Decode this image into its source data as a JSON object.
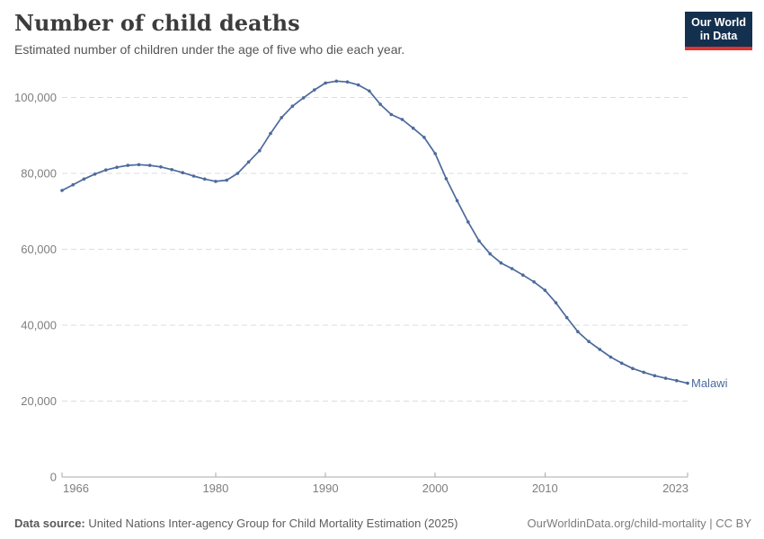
{
  "header": {
    "title": "Number of child deaths",
    "subtitle": "Estimated number of children under the age of five who die each year."
  },
  "logo": {
    "line1": "Our World",
    "line2": "in Data",
    "bg_color": "#13304F",
    "accent_color": "#E2342D"
  },
  "chart_data": {
    "type": "line",
    "title": "Number of child deaths",
    "subtitle": "Estimated number of children under the age of five who die each year.",
    "xlabel": "",
    "ylabel": "",
    "xlim": [
      1966,
      2023
    ],
    "ylim": [
      0,
      106000
    ],
    "grid": true,
    "grid_style": "dashed",
    "grid_color": "#dddddd",
    "axis_color": "#aaaaaa",
    "x_ticks": [
      1966,
      1980,
      1990,
      2000,
      2010,
      2023
    ],
    "y_ticks": [
      0,
      20000,
      40000,
      60000,
      80000,
      100000
    ],
    "y_tick_labels": [
      "0",
      "20,000",
      "40,000",
      "60,000",
      "80,000",
      "100,000"
    ],
    "legend_position": "end-of-line-label",
    "series": [
      {
        "name": "Malawi",
        "color": "#4C6A9C",
        "x": [
          1966,
          1967,
          1968,
          1969,
          1970,
          1971,
          1972,
          1973,
          1974,
          1975,
          1976,
          1977,
          1978,
          1979,
          1980,
          1981,
          1982,
          1983,
          1984,
          1985,
          1986,
          1987,
          1988,
          1989,
          1990,
          1991,
          1992,
          1993,
          1994,
          1995,
          1996,
          1997,
          1998,
          1999,
          2000,
          2001,
          2002,
          2003,
          2004,
          2005,
          2006,
          2007,
          2008,
          2009,
          2010,
          2011,
          2012,
          2013,
          2014,
          2015,
          2016,
          2017,
          2018,
          2019,
          2020,
          2021,
          2022,
          2023
        ],
        "values": [
          75500,
          77000,
          78500,
          79800,
          80900,
          81600,
          82100,
          82300,
          82100,
          81700,
          81000,
          80200,
          79300,
          78500,
          77900,
          78200,
          80000,
          83000,
          86000,
          90500,
          94700,
          97700,
          99900,
          102000,
          103800,
          104300,
          104100,
          103300,
          101700,
          98200,
          95500,
          94200,
          91900,
          89500,
          85200,
          78600,
          72800,
          67200,
          62200,
          58800,
          56400,
          54900,
          53200,
          51400,
          49200,
          45900,
          42000,
          38300,
          35700,
          33600,
          31600,
          30000,
          28600,
          27600,
          26700,
          26000,
          25400,
          24700
        ]
      }
    ]
  },
  "footer": {
    "source_label": "Data source:",
    "source_text": " United Nations Inter-agency Group for Child Mortality Estimation (2025)",
    "link": "OurWorldinData.org/child-mortality | CC BY"
  }
}
